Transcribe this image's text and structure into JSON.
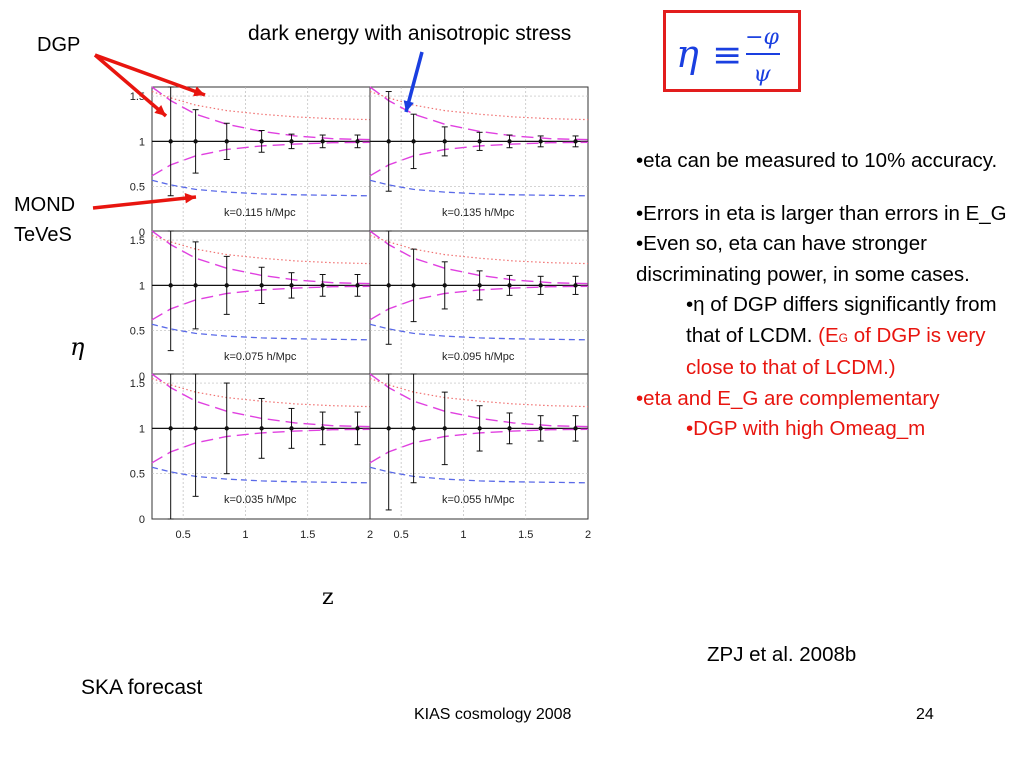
{
  "slide": {
    "annotations": {
      "dgp": "DGP",
      "mond": "MOND",
      "teves": "TeVeS",
      "dark_energy": "dark energy with anisotropic stress"
    },
    "equation": {
      "lhs": "η",
      "op": "≡",
      "num": "−φ",
      "den": "ψ"
    },
    "bullets": [
      {
        "text": "•eta can be measured to 10% accuracy.",
        "indent": 0,
        "color": "black"
      },
      {
        "text": "•Errors in eta is larger than errors in E_G",
        "indent": 0,
        "color": "black",
        "gap": true
      },
      {
        "text": "•Even so, eta can have stronger discriminating power, in some cases.",
        "indent": 0,
        "color": "black"
      },
      {
        "text": "•η of DGP differs significantly from that of LCDM.",
        "indent": 1,
        "color": "black",
        "red_tail": {
          "pre": " (E",
          "sub": "G",
          "post": " of DGP is very close to that of LCDM.)"
        }
      },
      {
        "text": "•eta and E_G are complementary",
        "indent": 0,
        "color": "red"
      },
      {
        "text": "•DGP with high Omeag_m",
        "indent": 1,
        "color": "red"
      }
    ],
    "reference": "ZPJ et al. 2008b",
    "ska_label": "SKA forecast",
    "footer_left": "KIAS cosmology 2008",
    "footer_right": "24",
    "colors": {
      "accent_red": "#e8150f",
      "arrow_blue": "#1a3fe0",
      "curve_magenta": "#e040e0",
      "curve_red_dotted": "#f07070",
      "curve_blue_dashed": "#5a6ae8",
      "data_black": "#111111"
    }
  },
  "chart_data": {
    "type": "scatter",
    "xlabel": "z",
    "ylabel": "η",
    "xlim": [
      0.25,
      2.0
    ],
    "ylim": [
      0,
      1.6
    ],
    "xticks": [
      "0.5",
      "1",
      "1.5",
      "2"
    ],
    "yticks": [
      "0",
      "0.5",
      "1",
      "1.5"
    ],
    "grid": true,
    "panels": [
      {
        "label": "k=0.115 h/Mpc",
        "row": 0,
        "col": 0,
        "x": [
          0.4,
          0.6,
          0.85,
          1.13,
          1.37,
          1.62,
          1.9
        ],
        "y": [
          1,
          1,
          1,
          1,
          1,
          1,
          1
        ],
        "err": [
          0.6,
          0.35,
          0.2,
          0.12,
          0.08,
          0.07,
          0.07
        ]
      },
      {
        "label": "k=0.135 h/Mpc",
        "row": 0,
        "col": 1,
        "x": [
          0.4,
          0.6,
          0.85,
          1.13,
          1.37,
          1.62,
          1.9
        ],
        "y": [
          1,
          1,
          1,
          1,
          1,
          1,
          1
        ],
        "err": [
          0.55,
          0.3,
          0.16,
          0.1,
          0.07,
          0.06,
          0.06
        ]
      },
      {
        "label": "k=0.075 h/Mpc",
        "row": 1,
        "col": 0,
        "x": [
          0.4,
          0.6,
          0.85,
          1.13,
          1.37,
          1.62,
          1.9
        ],
        "y": [
          1,
          1,
          1,
          1,
          1,
          1,
          1
        ],
        "err": [
          0.72,
          0.48,
          0.32,
          0.2,
          0.14,
          0.12,
          0.12
        ]
      },
      {
        "label": "k=0.095 h/Mpc",
        "row": 1,
        "col": 1,
        "x": [
          0.4,
          0.6,
          0.85,
          1.13,
          1.37,
          1.62,
          1.9
        ],
        "y": [
          1,
          1,
          1,
          1,
          1,
          1,
          1
        ],
        "err": [
          0.65,
          0.4,
          0.26,
          0.16,
          0.11,
          0.1,
          0.1
        ]
      },
      {
        "label": "k=0.035 h/Mpc",
        "row": 2,
        "col": 0,
        "x": [
          0.4,
          0.6,
          0.85,
          1.13,
          1.37,
          1.62,
          1.9
        ],
        "y": [
          1,
          1,
          1,
          1,
          1,
          1,
          1
        ],
        "err": [
          1.1,
          0.75,
          0.5,
          0.33,
          0.22,
          0.18,
          0.18
        ]
      },
      {
        "label": "k=0.055 h/Mpc",
        "row": 2,
        "col": 1,
        "x": [
          0.4,
          0.6,
          0.85,
          1.13,
          1.37,
          1.62,
          1.9
        ],
        "y": [
          1,
          1,
          1,
          1,
          1,
          1,
          1
        ],
        "err": [
          0.9,
          0.6,
          0.4,
          0.25,
          0.17,
          0.14,
          0.14
        ]
      }
    ],
    "model_curves": {
      "x": [
        0.25,
        0.4,
        0.6,
        0.85,
        1.13,
        1.4,
        1.7,
        2.0
      ],
      "dgp_upper": [
        1.6,
        1.45,
        1.3,
        1.19,
        1.11,
        1.06,
        1.03,
        1.02
      ],
      "dgp_lower": [
        0.62,
        0.74,
        0.84,
        0.91,
        0.95,
        0.97,
        0.985,
        0.99
      ],
      "dark_energy_dotted": [
        1.55,
        1.48,
        1.4,
        1.34,
        1.3,
        1.27,
        1.25,
        1.24
      ],
      "mond_dashed": [
        0.57,
        0.52,
        0.47,
        0.44,
        0.42,
        0.41,
        0.405,
        0.4
      ]
    }
  }
}
